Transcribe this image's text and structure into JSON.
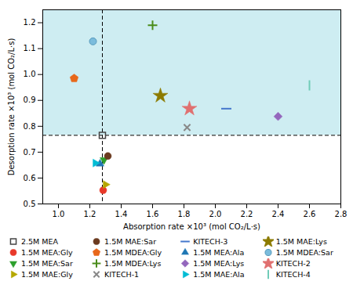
{
  "chart_data": {
    "type": "scatter",
    "xlabel": "Absorption rate ×10³ (mol CO₂/L·s)",
    "ylabel": "Desorption rate ×10³ (mol CO₂/L·s)",
    "xlim": [
      0.9,
      2.8
    ],
    "ylim": [
      0.5,
      1.25
    ],
    "xticks": [
      {
        "value": 1.0,
        "label": "1.0"
      },
      1.2,
      1.4,
      1.6,
      1.8,
      {
        "value": 2.0,
        "label": "2.0"
      },
      2.2,
      2.4,
      2.6,
      2.8
    ],
    "yticks": [
      0.5,
      0.6,
      0.7,
      0.8,
      0.9,
      {
        "value": 1.0,
        "label": "1.0"
      },
      1.1,
      1.2
    ],
    "vline_x": 1.28,
    "hline_y": 0.765,
    "fill_above_color": "#ceedf2",
    "grid": false,
    "legend": "bottom",
    "series": [
      {
        "name": "2.5M MEA",
        "color": "#444444",
        "marker": "square-open",
        "x": [
          1.28
        ],
        "y": [
          0.765
        ]
      },
      {
        "name": "1.5M MEA:Gly",
        "color": "#e8392a",
        "marker": "circle",
        "x": [
          1.285
        ],
        "y": [
          0.553
        ]
      },
      {
        "name": "1.5M MEA:Sar",
        "color": "#2ca02c",
        "marker": "triangle-down",
        "x": [
          1.29
        ],
        "y": [
          0.67
        ]
      },
      {
        "name": "1.5M MAE:Gly",
        "color": "#b5a800",
        "marker": "triangle-right",
        "x": [
          1.3
        ],
        "y": [
          0.575
        ]
      },
      {
        "name": "1.5M MAE:Sar",
        "color": "#6b3a1f",
        "marker": "circle",
        "x": [
          1.315
        ],
        "y": [
          0.685
        ]
      },
      {
        "name": "1.5M MDEA:Gly",
        "color": "#e8681a",
        "marker": "pentagon",
        "x": [
          1.1
        ],
        "y": [
          0.985
        ]
      },
      {
        "name": "1.5M MDEA:Lys",
        "color": "#4a8c1a",
        "marker": "plus",
        "x": [
          1.6
        ],
        "y": [
          1.19
        ]
      },
      {
        "name": "KITECH-1",
        "color": "#888888",
        "marker": "x",
        "x": [
          1.82
        ],
        "y": [
          0.795
        ]
      },
      {
        "name": "KITECH-3",
        "color": "#4477cc",
        "marker": "hline",
        "x": [
          2.07
        ],
        "y": [
          0.868
        ]
      },
      {
        "name": "1.5M MEA:Ala",
        "color": "#1f77b4",
        "marker": "triangle-up",
        "x": [
          1.265
        ],
        "y": [
          0.655
        ]
      },
      {
        "name": "1.5M MEA:Lys",
        "color": "#9467bd",
        "marker": "diamond",
        "x": [
          2.4
        ],
        "y": [
          0.838
        ]
      },
      {
        "name": "1.5M MAE:Ala",
        "color": "#00bcd4",
        "marker": "triangle-right",
        "x": [
          1.235
        ],
        "y": [
          0.658
        ]
      },
      {
        "name": "1.5M MAE:Lys",
        "color": "#8c7b00",
        "marker": "star",
        "x": [
          1.65
        ],
        "y": [
          0.918
        ]
      },
      {
        "name": "1.5M MDEA:Sar",
        "color": "#7bbcdc",
        "edge_color": "#5599bb",
        "marker": "circle",
        "x": [
          1.22
        ],
        "y": [
          1.128
        ]
      },
      {
        "name": "KITECH-2",
        "color": "#e07070",
        "marker": "star",
        "x": [
          1.835
        ],
        "y": [
          0.868
        ]
      },
      {
        "name": "KITECH-4",
        "color": "#70ccb8",
        "marker": "vline",
        "x": [
          2.6
        ],
        "y": [
          0.958
        ]
      }
    ]
  }
}
